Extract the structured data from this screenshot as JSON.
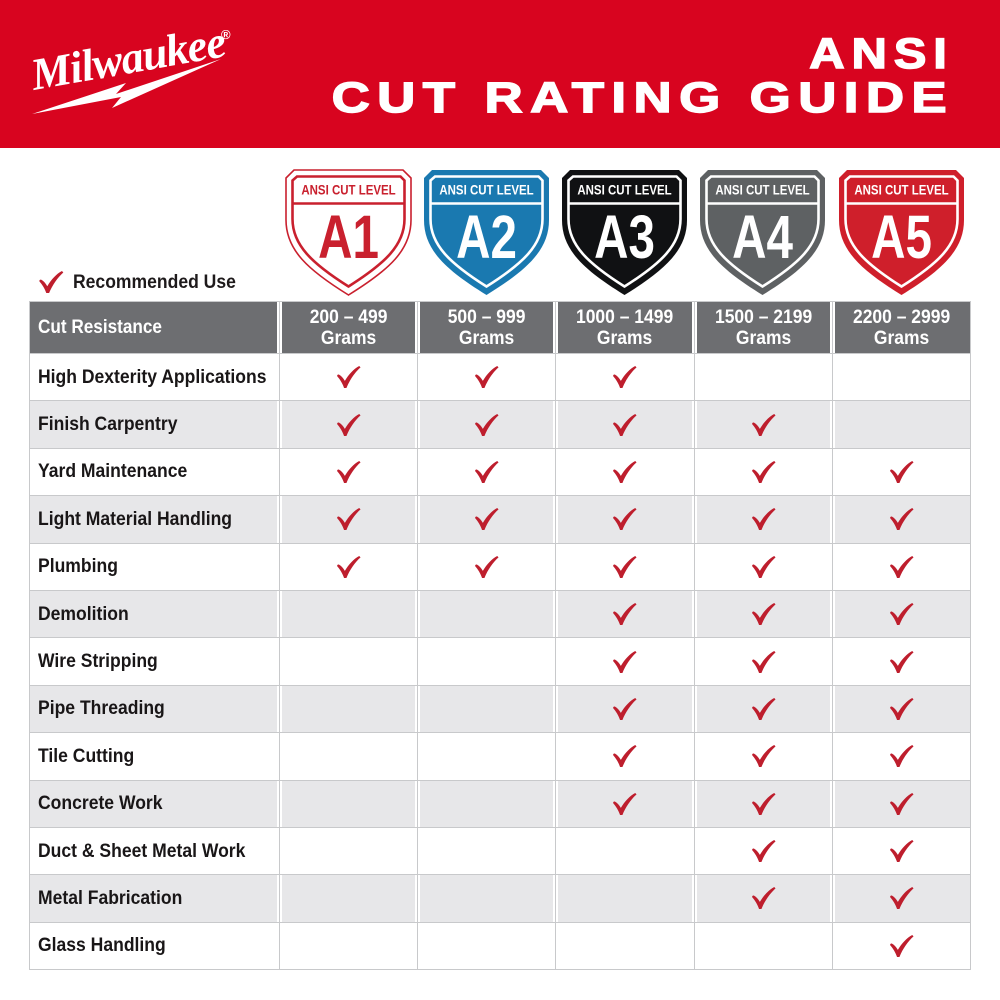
{
  "banner": {
    "logo_text": "Milwaukee",
    "registered_mark": "®",
    "title_line1": "ANSI",
    "title_line2": "CUT RATING GUIDE",
    "background_color": "#d8041f",
    "text_color": "#ffffff"
  },
  "shields": [
    {
      "level": "A1",
      "caption": "ANSI CUT LEVEL",
      "fill": "#ffffff",
      "accent": "#c9202e",
      "outlined": true
    },
    {
      "level": "A2",
      "caption": "ANSI CUT LEVEL",
      "fill": "#1a79b0",
      "accent": "#ffffff",
      "outlined": false
    },
    {
      "level": "A3",
      "caption": "ANSI CUT LEVEL",
      "fill": "#101113",
      "accent": "#ffffff",
      "outlined": false
    },
    {
      "level": "A4",
      "caption": "ANSI CUT LEVEL",
      "fill": "#5e6163",
      "accent": "#ffffff",
      "outlined": false
    },
    {
      "level": "A5",
      "caption": "ANSI CUT LEVEL",
      "fill": "#cf1f2b",
      "accent": "#ffffff",
      "outlined": false
    }
  ],
  "legend": {
    "label": "Recommended Use",
    "check_color": "#be1e2d"
  },
  "table": {
    "corner_header": "Cut Resistance",
    "column_headers": [
      {
        "range": "200 – 499",
        "unit": "Grams"
      },
      {
        "range": "500 – 999",
        "unit": "Grams"
      },
      {
        "range": "1000 – 1499",
        "unit": "Grams"
      },
      {
        "range": "1500 – 2199",
        "unit": "Grams"
      },
      {
        "range": "2200 – 2999",
        "unit": "Grams"
      }
    ],
    "rows": [
      {
        "label": "High Dexterity Applications",
        "checks": [
          true,
          true,
          true,
          false,
          false
        ]
      },
      {
        "label": "Finish Carpentry",
        "checks": [
          true,
          true,
          true,
          true,
          false
        ]
      },
      {
        "label": "Yard Maintenance",
        "checks": [
          true,
          true,
          true,
          true,
          true
        ]
      },
      {
        "label": "Light Material Handling",
        "checks": [
          true,
          true,
          true,
          true,
          true
        ]
      },
      {
        "label": "Plumbing",
        "checks": [
          true,
          true,
          true,
          true,
          true
        ]
      },
      {
        "label": "Demolition",
        "checks": [
          false,
          false,
          true,
          true,
          true
        ]
      },
      {
        "label": "Wire Stripping",
        "checks": [
          false,
          false,
          true,
          true,
          true
        ]
      },
      {
        "label": "Pipe Threading",
        "checks": [
          false,
          false,
          true,
          true,
          true
        ]
      },
      {
        "label": "Tile Cutting",
        "checks": [
          false,
          false,
          true,
          true,
          true
        ]
      },
      {
        "label": "Concrete Work",
        "checks": [
          false,
          false,
          true,
          true,
          true
        ]
      },
      {
        "label": "Duct & Sheet Metal Work",
        "checks": [
          false,
          false,
          false,
          true,
          true
        ]
      },
      {
        "label": "Metal Fabrication",
        "checks": [
          false,
          false,
          false,
          true,
          true
        ]
      },
      {
        "label": "Glass Handling",
        "checks": [
          false,
          false,
          false,
          false,
          true
        ]
      }
    ],
    "header_background": "#6d6e71",
    "row_alt_background": "#e7e7e9",
    "check_color": "#be1e2d"
  }
}
